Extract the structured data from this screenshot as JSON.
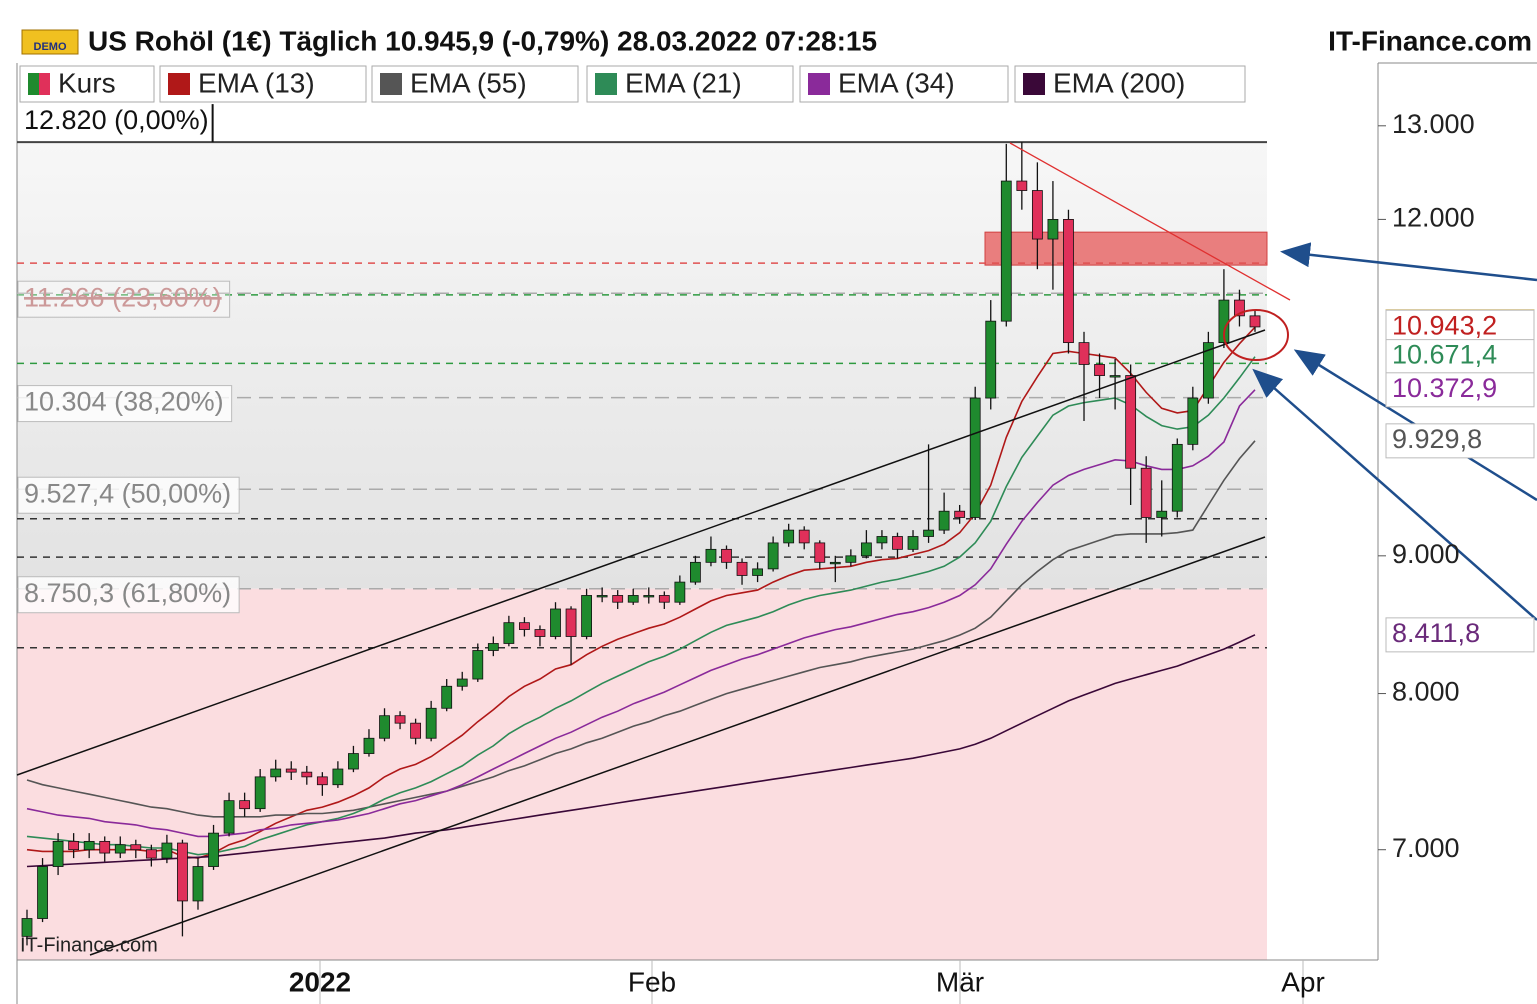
{
  "chart_data": {
    "type": "candlestick",
    "title": "US Rohöl (1€) Täglich 10.945,9 (-0,79%) 28.03.2022 07:28:15",
    "source": "IT-Finance.com",
    "watermark": "IT-Finance.com",
    "badge": "DEMO",
    "log_scale": true,
    "ylim": [
      6370,
      13290
    ],
    "yticks": [
      {
        "value": 7000,
        "label": "7.000"
      },
      {
        "value": 8000,
        "label": "8.000"
      },
      {
        "value": 9000,
        "label": "9.000"
      },
      {
        "value": 12000,
        "label": "12.000"
      },
      {
        "value": 13000,
        "label": "13.000"
      }
    ],
    "x_labels": [
      "2022",
      "Feb",
      "Mär",
      "Apr"
    ],
    "candles": {
      "name": "Kurs",
      "up_color": "#1f8a2e",
      "down_color": "#e0305a",
      "ohlc": [
        [
          6500,
          6650,
          6450,
          6600
        ],
        [
          6600,
          6950,
          6580,
          6900
        ],
        [
          6900,
          7100,
          6850,
          7050
        ],
        [
          7050,
          7100,
          6950,
          7000
        ],
        [
          7000,
          7100,
          6950,
          7050
        ],
        [
          7050,
          7080,
          6930,
          6980
        ],
        [
          6980,
          7080,
          6950,
          7030
        ],
        [
          7030,
          7060,
          6950,
          7000
        ],
        [
          7000,
          7030,
          6900,
          6950
        ],
        [
          6950,
          7090,
          6920,
          7040
        ],
        [
          7040,
          7060,
          6500,
          6700
        ],
        [
          6700,
          6950,
          6650,
          6900
        ],
        [
          6900,
          7150,
          6880,
          7100
        ],
        [
          7100,
          7350,
          7080,
          7300
        ],
        [
          7300,
          7350,
          7200,
          7250
        ],
        [
          7250,
          7500,
          7230,
          7450
        ],
        [
          7450,
          7560,
          7420,
          7500
        ],
        [
          7500,
          7550,
          7430,
          7480
        ],
        [
          7480,
          7520,
          7400,
          7450
        ],
        [
          7450,
          7480,
          7330,
          7400
        ],
        [
          7400,
          7550,
          7380,
          7500
        ],
        [
          7500,
          7650,
          7480,
          7600
        ],
        [
          7600,
          7760,
          7580,
          7700
        ],
        [
          7700,
          7900,
          7680,
          7850
        ],
        [
          7850,
          7880,
          7760,
          7800
        ],
        [
          7800,
          7830,
          7660,
          7700
        ],
        [
          7700,
          7950,
          7680,
          7900
        ],
        [
          7900,
          8100,
          7880,
          8050
        ],
        [
          8050,
          8150,
          8020,
          8100
        ],
        [
          8100,
          8350,
          8080,
          8300
        ],
        [
          8300,
          8400,
          8260,
          8350
        ],
        [
          8350,
          8550,
          8330,
          8500
        ],
        [
          8500,
          8540,
          8400,
          8450
        ],
        [
          8450,
          8480,
          8330,
          8400
        ],
        [
          8400,
          8650,
          8380,
          8600
        ],
        [
          8600,
          8620,
          8200,
          8400
        ],
        [
          8400,
          8750,
          8380,
          8700
        ],
        [
          8700,
          8760,
          8650,
          8700
        ],
        [
          8700,
          8740,
          8600,
          8650
        ],
        [
          8650,
          8750,
          8630,
          8700
        ],
        [
          8700,
          8760,
          8640,
          8700
        ],
        [
          8700,
          8730,
          8600,
          8650
        ],
        [
          8650,
          8850,
          8630,
          8800
        ],
        [
          8800,
          9000,
          8780,
          8950
        ],
        [
          8950,
          9150,
          8920,
          9050
        ],
        [
          9050,
          9080,
          8900,
          8950
        ],
        [
          8950,
          8980,
          8780,
          8850
        ],
        [
          8850,
          8950,
          8800,
          8900
        ],
        [
          8900,
          9150,
          8880,
          9100
        ],
        [
          9100,
          9250,
          9070,
          9200
        ],
        [
          9200,
          9230,
          9050,
          9100
        ],
        [
          9100,
          9120,
          8900,
          8950
        ],
        [
          8950,
          9000,
          8800,
          8950
        ],
        [
          8950,
          9050,
          8920,
          9000
        ],
        [
          9000,
          9200,
          8980,
          9100
        ],
        [
          9100,
          9200,
          9050,
          9150
        ],
        [
          9150,
          9180,
          8980,
          9050
        ],
        [
          9050,
          9200,
          9030,
          9150
        ],
        [
          9150,
          9900,
          9100,
          9200
        ],
        [
          9200,
          9500,
          9170,
          9350
        ],
        [
          9350,
          9400,
          9250,
          9300
        ],
        [
          9300,
          10400,
          9280,
          10300
        ],
        [
          10300,
          11200,
          10200,
          11000
        ],
        [
          11000,
          12800,
          10950,
          12400
        ],
        [
          12400,
          12820,
          12100,
          12300
        ],
        [
          12300,
          12600,
          11500,
          11800
        ],
        [
          11800,
          12400,
          11300,
          12000
        ],
        [
          12000,
          12100,
          10700,
          10800
        ],
        [
          10800,
          10900,
          10100,
          10600
        ],
        [
          10600,
          10700,
          10300,
          10500
        ],
        [
          10500,
          10650,
          10200,
          10500
        ],
        [
          10500,
          10600,
          9400,
          9700
        ],
        [
          9700,
          9800,
          9100,
          9300
        ],
        [
          9300,
          9600,
          9150,
          9350
        ],
        [
          9350,
          9950,
          9300,
          9900
        ],
        [
          9900,
          10400,
          9850,
          10300
        ],
        [
          10300,
          10900,
          10250,
          10800
        ],
        [
          10800,
          11500,
          10750,
          11200
        ],
        [
          11200,
          11300,
          10950,
          11050
        ],
        [
          11050,
          11100,
          10900,
          10945.9
        ]
      ]
    },
    "series": [
      {
        "name": "EMA (13)",
        "color": "#b01818",
        "values": [
          7000,
          6990,
          6990,
          6990,
          7000,
          7000,
          7000,
          7000,
          6990,
          7000,
          6960,
          6950,
          6980,
          7030,
          7060,
          7110,
          7160,
          7200,
          7240,
          7260,
          7290,
          7330,
          7380,
          7450,
          7500,
          7530,
          7580,
          7650,
          7720,
          7810,
          7890,
          7980,
          8050,
          8100,
          8170,
          8200,
          8270,
          8330,
          8380,
          8420,
          8460,
          8490,
          8540,
          8600,
          8660,
          8700,
          8720,
          8740,
          8800,
          8850,
          8890,
          8900,
          8910,
          8920,
          8950,
          8970,
          8980,
          9010,
          9040,
          9090,
          9180,
          9330,
          9560,
          9960,
          10270,
          10490,
          10700,
          10720,
          10700,
          10680,
          10660,
          10520,
          10350,
          10210,
          10170,
          10190,
          10400,
          10620,
          10790,
          10943
        ]
      },
      {
        "name": "EMA (55)",
        "color": "#555555",
        "values": [
          7430,
          7400,
          7380,
          7360,
          7340,
          7320,
          7300,
          7280,
          7260,
          7250,
          7230,
          7210,
          7200,
          7200,
          7200,
          7200,
          7210,
          7210,
          7220,
          7220,
          7230,
          7240,
          7260,
          7280,
          7300,
          7320,
          7340,
          7360,
          7390,
          7420,
          7450,
          7490,
          7520,
          7560,
          7600,
          7630,
          7670,
          7700,
          7740,
          7780,
          7810,
          7850,
          7880,
          7920,
          7960,
          8000,
          8030,
          8060,
          8090,
          8120,
          8150,
          8180,
          8200,
          8220,
          8250,
          8270,
          8290,
          8310,
          8340,
          8370,
          8410,
          8460,
          8540,
          8660,
          8780,
          8880,
          8970,
          9040,
          9080,
          9120,
          9160,
          9170,
          9170,
          9170,
          9180,
          9200,
          9400,
          9600,
          9780,
          9930
        ]
      },
      {
        "name": "EMA (21)",
        "color": "#2e8b57",
        "values": [
          7080,
          7070,
          7060,
          7050,
          7040,
          7030,
          7030,
          7020,
          7010,
          7010,
          6990,
          6970,
          6980,
          7000,
          7020,
          7060,
          7090,
          7120,
          7150,
          7170,
          7190,
          7220,
          7260,
          7310,
          7350,
          7380,
          7420,
          7470,
          7520,
          7590,
          7650,
          7730,
          7790,
          7840,
          7900,
          7950,
          8010,
          8070,
          8120,
          8170,
          8220,
          8260,
          8310,
          8370,
          8430,
          8480,
          8510,
          8540,
          8580,
          8630,
          8670,
          8700,
          8720,
          8740,
          8770,
          8800,
          8820,
          8850,
          8880,
          8920,
          8990,
          9100,
          9270,
          9550,
          9790,
          9970,
          10150,
          10230,
          10260,
          10280,
          10300,
          10240,
          10140,
          10060,
          10030,
          10050,
          10150,
          10300,
          10480,
          10671
        ]
      },
      {
        "name": "EMA (34)",
        "color": "#8a2a9a",
        "values": [
          7250,
          7230,
          7210,
          7200,
          7190,
          7170,
          7160,
          7150,
          7130,
          7120,
          7100,
          7080,
          7080,
          7090,
          7100,
          7120,
          7130,
          7150,
          7160,
          7170,
          7180,
          7200,
          7220,
          7250,
          7280,
          7300,
          7330,
          7360,
          7400,
          7450,
          7500,
          7550,
          7600,
          7650,
          7700,
          7740,
          7790,
          7840,
          7880,
          7930,
          7970,
          8010,
          8060,
          8110,
          8160,
          8200,
          8240,
          8270,
          8310,
          8350,
          8390,
          8420,
          8450,
          8470,
          8500,
          8530,
          8560,
          8580,
          8610,
          8650,
          8700,
          8780,
          8900,
          9090,
          9270,
          9420,
          9560,
          9640,
          9690,
          9730,
          9770,
          9760,
          9720,
          9690,
          9690,
          9720,
          9800,
          9920,
          10230,
          10373
        ]
      },
      {
        "name": "EMA (200)",
        "color": "#3a0838",
        "values": [
          6900,
          6905,
          6910,
          6915,
          6920,
          6925,
          6930,
          6935,
          6940,
          6945,
          6950,
          6955,
          6960,
          6970,
          6980,
          6990,
          7000,
          7010,
          7020,
          7030,
          7040,
          7050,
          7060,
          7070,
          7085,
          7100,
          7110,
          7120,
          7135,
          7150,
          7165,
          7180,
          7195,
          7210,
          7225,
          7240,
          7255,
          7270,
          7285,
          7300,
          7315,
          7330,
          7345,
          7360,
          7375,
          7390,
          7405,
          7420,
          7435,
          7450,
          7465,
          7480,
          7495,
          7510,
          7525,
          7540,
          7555,
          7570,
          7590,
          7610,
          7630,
          7660,
          7700,
          7750,
          7800,
          7850,
          7900,
          7950,
          7990,
          8030,
          8070,
          8100,
          8130,
          8160,
          8190,
          8230,
          8270,
          8310,
          8360,
          8412
        ]
      }
    ],
    "fib_levels": [
      {
        "value": 12820,
        "label": "12.820 (0,00%)"
      },
      {
        "value": 11266,
        "label": "11.266 (23,60%)"
      },
      {
        "value": 10304,
        "label": "10.304 (38,20%)"
      },
      {
        "value": 9527.4,
        "label": "9.527,4 (50,00%)"
      },
      {
        "value": 8750.3,
        "label": "8.750,3 (61,80%)"
      }
    ],
    "levels": [
      {
        "value": 11560,
        "color": "#e05050"
      },
      {
        "value": 11250,
        "color": "#2e9a40"
      },
      {
        "value": 10610,
        "color": "#2e9a40"
      },
      {
        "value": 9290,
        "color": "#333333"
      },
      {
        "value": 8990,
        "color": "#333333"
      },
      {
        "value": 8320,
        "color": "#333333"
      }
    ],
    "zone": {
      "low": 11540,
      "high": 11870,
      "color": "#e86a6a"
    },
    "price_tags": [
      {
        "value": 10945.9,
        "label": "10.945,9",
        "color": "#000000",
        "fill": "#f5c518"
      },
      {
        "value": 10943.2,
        "label": "10.943,2",
        "color": "#c02020",
        "fill": "#ffffff"
      },
      {
        "value": 10671.4,
        "label": "10.671,4",
        "color": "#2e8b57",
        "fill": "#ffffff"
      },
      {
        "value": 10372.9,
        "label": "10.372,9",
        "color": "#8a2a9a",
        "fill": "#ffffff"
      },
      {
        "value": 9929.8,
        "label": "9.929,8",
        "color": "#555555",
        "fill": "#ffffff"
      },
      {
        "value": 8411.8,
        "label": "8.411,8",
        "color": "#6a2a7a",
        "fill": "#ffffff"
      }
    ]
  }
}
